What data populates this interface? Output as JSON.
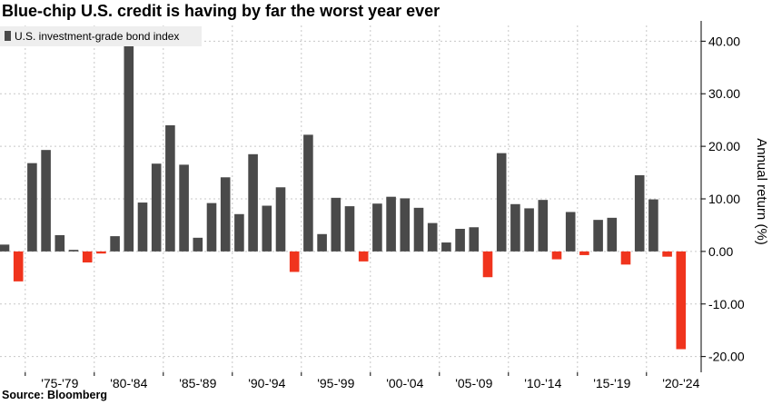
{
  "title": "Blue-chip U.S. credit is having by far the worst year ever",
  "source": {
    "label": "Source:",
    "name": "Bloomberg"
  },
  "colors": {
    "positive": "#4a4a4a",
    "negative": "#f0341d",
    "grid": "#c8c8c8",
    "legend_bg": "#eeeeee"
  },
  "chart_data": {
    "type": "bar",
    "title": "Blue-chip U.S. credit is having by far the worst year ever",
    "xlabel": "",
    "ylabel": "Annual return (%)",
    "ylim": [
      -23,
      43
    ],
    "yticks": [
      40,
      30,
      20,
      10,
      0,
      -10,
      -20
    ],
    "ytick_labels": [
      "40.00",
      "30.00",
      "20.00",
      "10.00",
      "0.00",
      "-10.00",
      "-20.00"
    ],
    "xtick_labels": [
      "'75-'79",
      "'80-'84",
      "'85-'89",
      "'90-'94",
      "'95-'99",
      "'00-'04",
      "'05-'09",
      "'10-'14",
      "'15-'19",
      "'20-'24"
    ],
    "xtick_group_starts": [
      1975,
      1980,
      1985,
      1990,
      1995,
      2000,
      2005,
      2010,
      2015,
      2020
    ],
    "grid": true,
    "legend_position": "top-left",
    "series": [
      {
        "name": "U.S. investment-grade bond index",
        "categories": [
          1973,
          1974,
          1975,
          1976,
          1977,
          1978,
          1979,
          1980,
          1981,
          1982,
          1983,
          1984,
          1985,
          1986,
          1987,
          1988,
          1989,
          1990,
          1991,
          1992,
          1993,
          1994,
          1995,
          1996,
          1997,
          1998,
          1999,
          2000,
          2001,
          2002,
          2003,
          2004,
          2005,
          2006,
          2007,
          2008,
          2009,
          2010,
          2011,
          2012,
          2013,
          2014,
          2015,
          2016,
          2017,
          2018,
          2019,
          2020,
          2021,
          2022
        ],
        "values": [
          1.3,
          -5.7,
          16.8,
          19.3,
          3.1,
          0.3,
          -2.1,
          -0.4,
          2.9,
          39.2,
          9.3,
          16.7,
          24.0,
          16.5,
          2.6,
          9.2,
          14.1,
          7.1,
          18.5,
          8.7,
          12.2,
          -3.9,
          22.2,
          3.3,
          10.2,
          8.6,
          -1.9,
          9.1,
          10.4,
          10.1,
          8.3,
          5.4,
          1.7,
          4.3,
          4.6,
          -4.9,
          18.7,
          9.0,
          8.2,
          9.8,
          -1.5,
          7.5,
          -0.7,
          6.0,
          6.4,
          -2.5,
          14.5,
          9.9,
          -1.0,
          -18.6
        ]
      }
    ]
  }
}
